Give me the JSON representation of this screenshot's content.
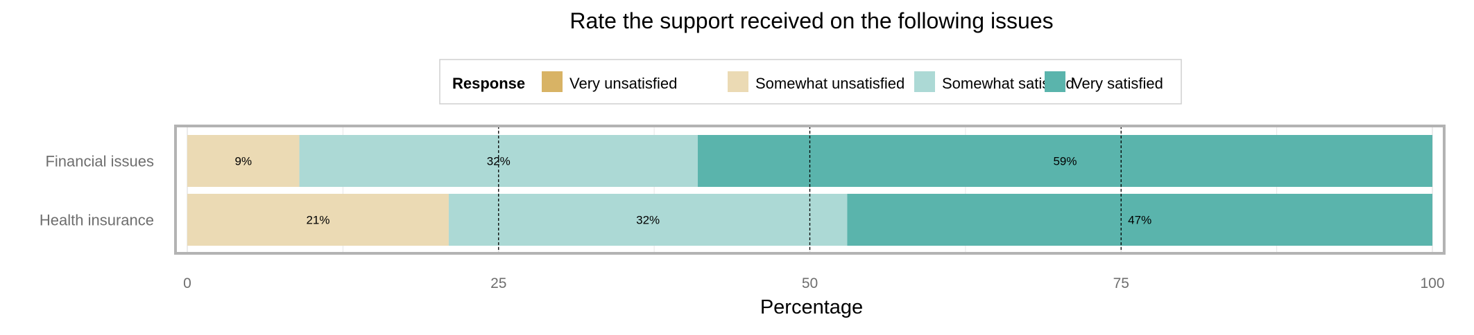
{
  "chart_data": {
    "type": "bar",
    "orientation": "horizontal",
    "stacked": true,
    "title": "Rate the support received on the following issues",
    "xlabel": "Percentage",
    "ylabel": "",
    "xlim": [
      0,
      100
    ],
    "x_ticks": [
      "0",
      "25",
      "50",
      "75",
      "100"
    ],
    "grid": true,
    "legend": {
      "title": "Response",
      "placement": "top",
      "entries": [
        {
          "label": "Very unsatisfied",
          "color": "#D8B365"
        },
        {
          "label": "Somewhat unsatisfied",
          "color": "#EBDAB4"
        },
        {
          "label": "Somewhat satisfied",
          "color": "#ACD9D5"
        },
        {
          "label": "Very satisfied",
          "color": "#5AB4AC"
        }
      ]
    },
    "categories": [
      "Financial issues",
      "Health insurance"
    ],
    "series": [
      {
        "name": "Very unsatisfied",
        "color": "#D8B365",
        "values": [
          0,
          0
        ],
        "labels": [
          "",
          ""
        ]
      },
      {
        "name": "Somewhat unsatisfied",
        "color": "#EBDAB4",
        "values": [
          9,
          21
        ],
        "labels": [
          "9%",
          "21%"
        ]
      },
      {
        "name": "Somewhat satisfied",
        "color": "#ACD9D5",
        "values": [
          32,
          32
        ],
        "labels": [
          "32%",
          "32%"
        ]
      },
      {
        "name": "Very satisfied",
        "color": "#5AB4AC",
        "values": [
          59,
          47
        ],
        "labels": [
          "59%",
          "47%"
        ]
      }
    ],
    "reference_lines": [
      25,
      50,
      75
    ]
  }
}
